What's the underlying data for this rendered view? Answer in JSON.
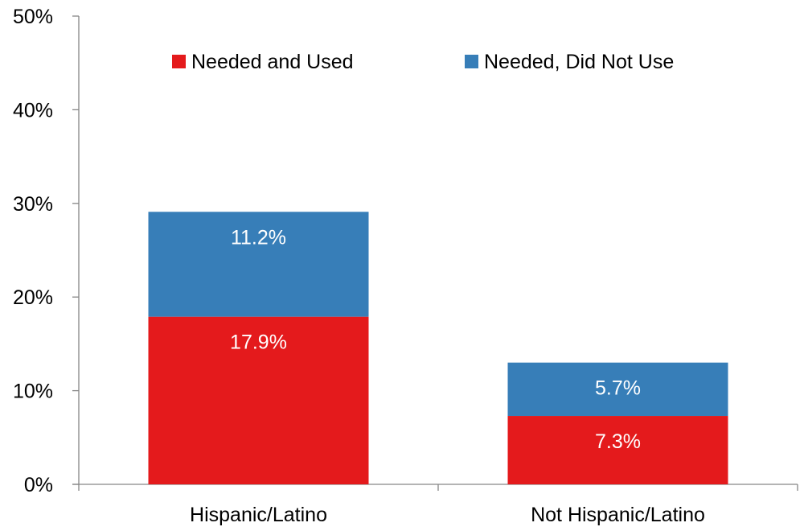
{
  "chart_data": {
    "type": "bar",
    "stacked": true,
    "title": "",
    "xlabel": "",
    "ylabel": "",
    "categories": [
      "Hispanic/Latino",
      "Not Hispanic/Latino"
    ],
    "series": [
      {
        "name": "Needed and Used",
        "values": [
          17.9,
          7.3
        ],
        "labels": [
          "17.9%",
          "7.3%"
        ],
        "color": "#e41a1c"
      },
      {
        "name": "Needed, Did Not Use",
        "values": [
          11.2,
          5.7
        ],
        "labels": [
          "11.2%",
          "5.7%"
        ],
        "color": "#377eb8"
      }
    ],
    "ylim": [
      0,
      50
    ],
    "yticks": [
      0,
      10,
      20,
      30,
      40,
      50
    ],
    "ytick_labels": [
      "0%",
      "10%",
      "20%",
      "30%",
      "40%",
      "50%"
    ],
    "grid": false,
    "legend_position": "top"
  }
}
